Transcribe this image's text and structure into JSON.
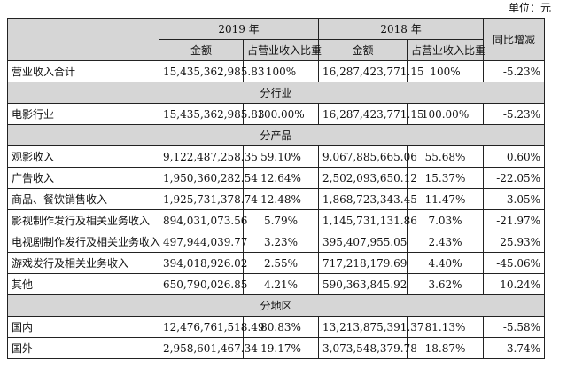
{
  "unit_label": "单位：元",
  "header": {
    "year_2019": "2019 年",
    "year_2018": "2018 年",
    "yoy": "同比增减",
    "amount": "金额",
    "share": "占营业收入比重"
  },
  "total": {
    "name": "营业收入合计",
    "amt2019": "15,435,362,985.83",
    "pct2019": "100%",
    "amt2018": "16,287,423,771.15",
    "pct2018": "100%",
    "chg": "-5.23%"
  },
  "sections": {
    "industry": "分行业",
    "product": "分产品",
    "region": "分地区"
  },
  "industry_rows": [
    {
      "name": "电影行业",
      "amt2019": "15,435,362,985.83",
      "pct2019": "100.00%",
      "amt2018": "16,287,423,771.15",
      "pct2018": "100.00%",
      "chg": "-5.23%"
    }
  ],
  "product_rows": [
    {
      "name": "观影收入",
      "amt2019": "9,122,487,258.35",
      "pct2019": "59.10%",
      "amt2018": "9,067,885,665.06",
      "pct2018": "55.68%",
      "chg": "0.60%"
    },
    {
      "name": "广告收入",
      "amt2019": "1,950,360,282.54",
      "pct2019": "12.64%",
      "amt2018": "2,502,093,650.12",
      "pct2018": "15.37%",
      "chg": "-22.05%"
    },
    {
      "name": "商品、餐饮销售收入",
      "amt2019": "1,925,731,378.74",
      "pct2019": "12.48%",
      "amt2018": "1,868,723,343.45",
      "pct2018": "11.47%",
      "chg": "3.05%"
    },
    {
      "name": "影视制作发行及相关业务收入",
      "amt2019": "894,031,073.56",
      "pct2019": "5.79%",
      "amt2018": "1,145,731,131.86",
      "pct2018": "7.03%",
      "chg": "-21.97%"
    },
    {
      "name": "电视剧制作发行及相关业务收入",
      "amt2019": "497,944,039.77",
      "pct2019": "3.23%",
      "amt2018": "395,407,955.05",
      "pct2018": "2.43%",
      "chg": "25.93%"
    },
    {
      "name": "游戏发行及相关业务收入",
      "amt2019": "394,018,926.02",
      "pct2019": "2.55%",
      "amt2018": "717,218,179.69",
      "pct2018": "4.40%",
      "chg": "-45.06%"
    },
    {
      "name": "其他",
      "amt2019": "650,790,026.85",
      "pct2019": "4.21%",
      "amt2018": "590,363,845.92",
      "pct2018": "3.62%",
      "chg": "10.24%"
    }
  ],
  "region_rows": [
    {
      "name": "国内",
      "amt2019": "12,476,761,518.49",
      "pct2019": "80.83%",
      "amt2018": "13,213,875,391.37",
      "pct2018": "81.13%",
      "chg": "-5.58%"
    },
    {
      "name": "国外",
      "amt2019": "2,958,601,467.34",
      "pct2019": "19.17%",
      "amt2018": "3,073,548,379.78",
      "pct2018": "18.87%",
      "chg": "-3.74%"
    }
  ]
}
